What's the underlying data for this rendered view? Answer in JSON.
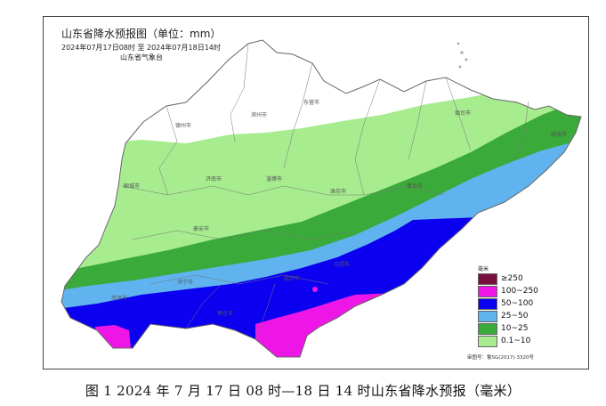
{
  "map": {
    "title": "山东省降水预报图（单位：mm）",
    "time_range": "2024年07月17日08时  至  2024年07月18日14时",
    "source": "山东省气象台",
    "approval": "审图号：鲁SG(2017)-3320号"
  },
  "legend": {
    "unit": "毫米",
    "items": [
      {
        "label": "≥250",
        "color": "#7a1040"
      },
      {
        "label": "100~250",
        "color": "#ee16e6"
      },
      {
        "label": "50~100",
        "color": "#0b00f0"
      },
      {
        "label": "25~50",
        "color": "#60b3ee"
      },
      {
        "label": "10~25",
        "color": "#3aaa3a"
      },
      {
        "label": "0.1~10",
        "color": "#a8ec90"
      }
    ]
  },
  "cities": [
    "德州市",
    "滨州市",
    "东营市",
    "烟台市",
    "威海市",
    "聊城市",
    "济南市",
    "淄博市",
    "潍坊市",
    "青岛市",
    "泰安市",
    "日照市",
    "济宁市",
    "菏泽市",
    "临沂市",
    "枣庄市"
  ],
  "caption": "图 1 2024 年 7 月 17 日 08 时—18 日 14 时山东省降水预报（毫米）"
}
